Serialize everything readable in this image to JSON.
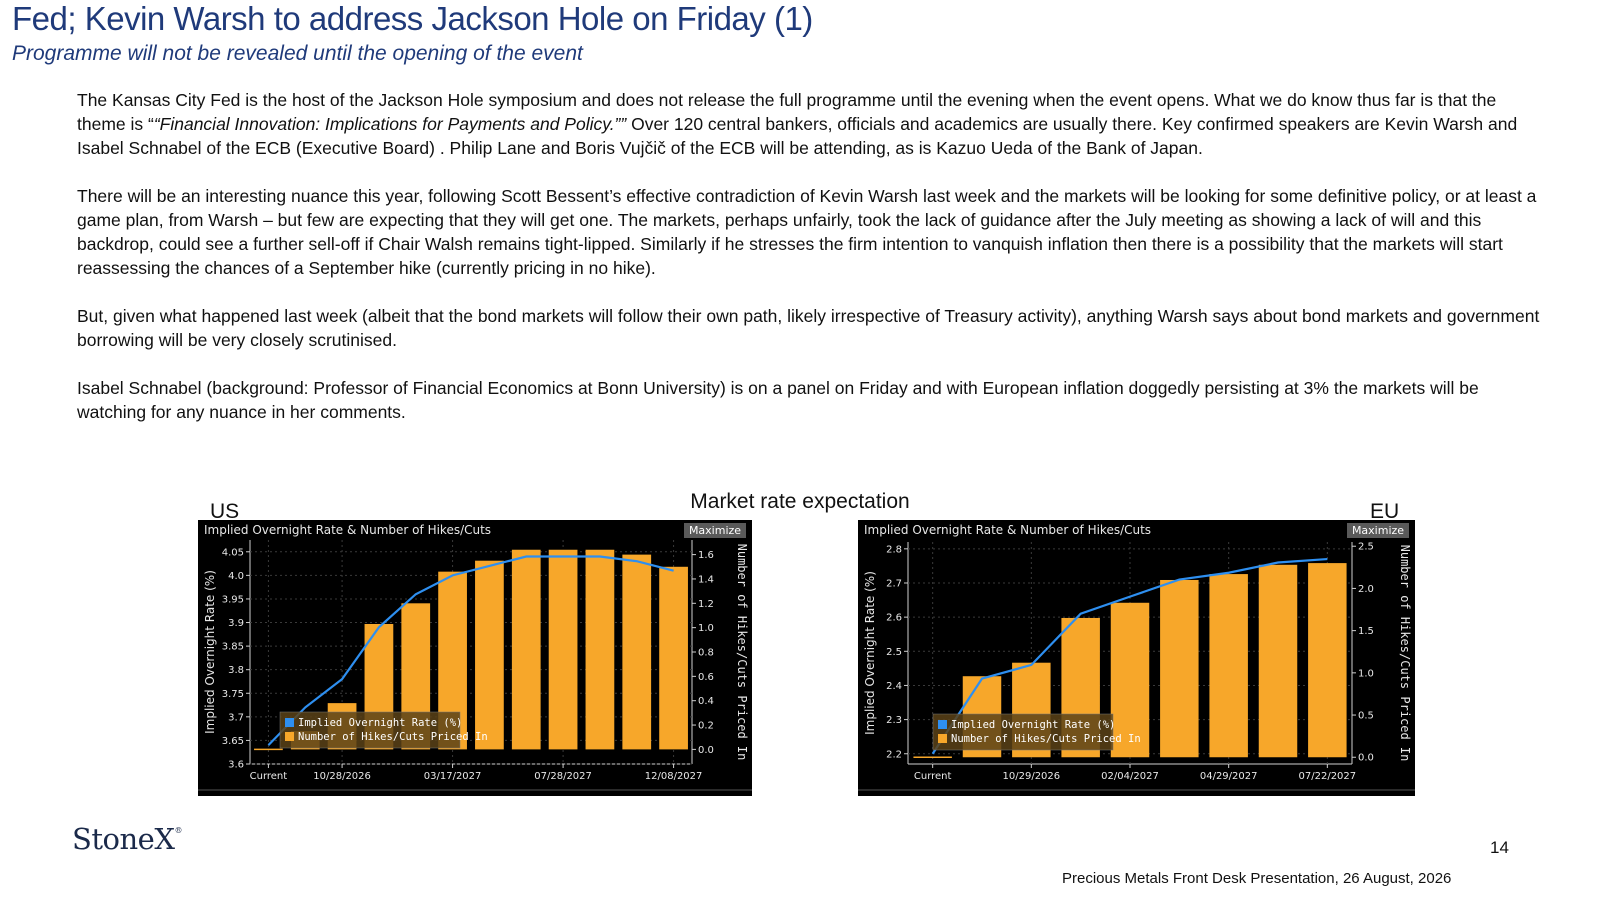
{
  "slide": {
    "title": "Fed; Kevin Warsh to address Jackson Hole on Friday (1)",
    "subtitle": "Programme will not be revealed until the opening of the event",
    "paragraphs": [
      {
        "pre": "The Kansas City Fed is the host of the Jackson Hole symposium and does not release the full programme until the evening when the event opens.  What we do know thus far is that the theme is “",
        "em": "“Financial Innovation: Implications for Payments and Policy.””",
        "post": "  Over 120 central bankers, officials and academics are usually there.  Key confirmed speakers are Kevin Warsh and  Isabel Schnabel of the ECB (Executive Board) .  Philip Lane and Boris Vujčič of the ECB will be attending, as is Kazuo Ueda of the Bank of Japan."
      },
      {
        "pre": "There will be an interesting nuance this year, following Scott Bessent’s effective contradiction of Kevin Warsh last week and the markets will be looking for some definitive policy, or at least a game plan, from Warsh – but few are expecting that they will get one.  The markets, perhaps unfairly, took the lack of guidance after the July meeting as showing a lack of will and this backdrop, could see a further sell-off if Chair Walsh remains tight-lipped.  Similarly if he stresses the firm intention to vanquish inflation then there is a possibility that the markets will start reassessing the chances of a September hike (currently pricing in no hike).",
        "em": "",
        "post": ""
      },
      {
        "pre": "But, given what happened last week (albeit that the bond markets will follow their own path, likely irrespective of Treasury activity),  anything Warsh says about bond markets and government borrowing will be very closely scrutinised.",
        "em": "",
        "post": ""
      },
      {
        "pre": "Isabel Schnabel (background: Professor of Financial Economics at Bonn University) is on a panel on Friday and with European inflation doggedly persisting at 3% the markets will be watching for any nuance in her comments.",
        "em": "",
        "post": ""
      }
    ],
    "charts_heading": "Market rate expectation",
    "us_label": "US",
    "eu_label": "EU",
    "logo": "StoneX",
    "page_number": "14",
    "footer": "Precious Metals Front Desk Presentation, 26 August, 2026"
  },
  "colors": {
    "title": "#1f3a7a",
    "bar": "#f7a72a",
    "line": "#2e8ff0",
    "chart_bg": "#000000"
  },
  "chart_data": [
    {
      "id": "us",
      "type": "bar",
      "title": "Implied Overnight Rate & Number of Hikes/Cuts",
      "button": "Maximize",
      "ylabel_left": "Implied Overnight Rate (%)",
      "ylabel_right": "Number of Hikes/Cuts Priced In",
      "x_tick_labels": [
        "Current",
        "10/28/2026",
        "03/17/2027",
        "07/28/2027",
        "12/08/2027"
      ],
      "x_tick_indices": [
        0,
        2,
        5,
        8,
        11
      ],
      "ylim_left": [
        3.6,
        4.075
      ],
      "ylim_right": [
        -0.12,
        1.72
      ],
      "y_ticks_left": [
        3.6,
        3.65,
        3.7,
        3.75,
        3.8,
        3.85,
        3.9,
        3.95,
        4.0,
        4.05
      ],
      "y_tick_labels_left": [
        "3.6",
        "3.65",
        "3.7",
        "3.75",
        "3.8",
        "3.85",
        "3.9",
        "3.95",
        "4.0",
        "4.05"
      ],
      "y_ticks_right": [
        0.0,
        0.2,
        0.4,
        0.6,
        0.8,
        1.0,
        1.2,
        1.4,
        1.6
      ],
      "y_tick_labels_right": [
        "0.0",
        "0.2",
        "0.4",
        "0.6",
        "0.8",
        "1.0",
        "1.2",
        "1.4",
        "1.6"
      ],
      "series": [
        {
          "name": "Implied Overnight Rate (%)",
          "type": "line",
          "axis": "left",
          "values": [
            3.64,
            3.72,
            3.78,
            3.89,
            3.96,
            4.0,
            4.02,
            4.04,
            4.04,
            4.04,
            4.03,
            4.01
          ]
        },
        {
          "name": "Number of Hikes/Cuts Priced In",
          "type": "bar",
          "axis": "right",
          "values": [
            0.0,
            0.15,
            0.38,
            1.03,
            1.2,
            1.46,
            1.55,
            1.64,
            1.64,
            1.64,
            1.6,
            1.5
          ]
        }
      ],
      "legend": "bottom-left",
      "grid": true
    },
    {
      "id": "eu",
      "type": "bar",
      "title": "Implied Overnight Rate & Number of Hikes/Cuts",
      "button": "Maximize",
      "ylabel_left": "Implied Overnight Rate (%)",
      "ylabel_right": "Number of Hikes/Cuts Priced In",
      "x_tick_labels": [
        "Current",
        "10/29/2026",
        "02/04/2027",
        "04/29/2027",
        "07/22/2027"
      ],
      "x_tick_indices": [
        0,
        2,
        4,
        6,
        8
      ],
      "ylim_left": [
        2.17,
        2.82
      ],
      "ylim_right": [
        -0.08,
        2.55
      ],
      "y_ticks_left": [
        2.2,
        2.3,
        2.4,
        2.5,
        2.6,
        2.7,
        2.8
      ],
      "y_tick_labels_left": [
        "2.2",
        "2.3",
        "2.4",
        "2.5",
        "2.6",
        "2.7",
        "2.8"
      ],
      "y_ticks_right": [
        0.0,
        0.5,
        1.0,
        1.5,
        2.0,
        2.5
      ],
      "y_tick_labels_right": [
        "0.0",
        "0.5",
        "1.0",
        "1.5",
        "2.0",
        "2.5"
      ],
      "series": [
        {
          "name": "Implied Overnight Rate (%)",
          "type": "line",
          "axis": "left",
          "values": [
            2.2,
            2.42,
            2.46,
            2.61,
            2.66,
            2.71,
            2.73,
            2.76,
            2.77
          ]
        },
        {
          "name": "Number of Hikes/Cuts Priced In",
          "type": "bar",
          "axis": "right",
          "values": [
            0.0,
            0.96,
            1.12,
            1.65,
            1.83,
            2.1,
            2.17,
            2.28,
            2.3
          ]
        }
      ],
      "legend": "bottom-left",
      "grid": true
    }
  ]
}
